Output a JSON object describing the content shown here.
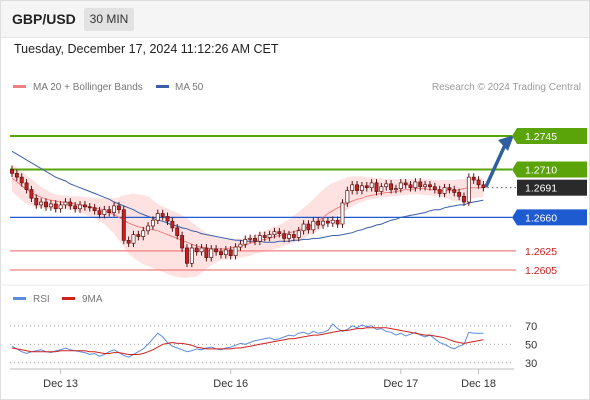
{
  "header": {
    "symbol": "GBP/USD",
    "timeframe": "30 MIN"
  },
  "datetime": "Tuesday, December 17, 2024 11:12:26 AM CET",
  "colors": {
    "support": "#1f5bd0",
    "resistance": "#5aa40a",
    "pivot": "#f08080",
    "ma20": "#f08080",
    "bollinger": "#fdd8d8",
    "ma50": "#3a5fa8",
    "last_price": "#2a2a2a",
    "arrow": "#2e5f9e",
    "rsi": "#5b8de0",
    "rsi_ma": "#d02020",
    "candle_up": "#ffffff",
    "candle_down": "#c82020"
  },
  "chart_data": [
    {
      "type": "candlestick",
      "legend": [
        {
          "name": "MA 20 + Bollinger Bands",
          "color": "#f08080"
        },
        {
          "name": "MA 50",
          "color": "#3a5fa8"
        }
      ],
      "credit": "Research © 2024 Trading Central",
      "x_ticks": [
        "Dec 13",
        "Dec 16",
        "Dec 17",
        "Dec 18"
      ],
      "levels": [
        {
          "label": "1.2745",
          "value": 1.2745,
          "kind": "resistance"
        },
        {
          "label": "1.2710",
          "value": 1.271,
          "kind": "resistance"
        },
        {
          "label": "1.2691",
          "value": 1.2691,
          "kind": "last"
        },
        {
          "label": "1.2660",
          "value": 1.266,
          "kind": "support"
        },
        {
          "label": "1.2625",
          "value": 1.2625,
          "kind": "pivot"
        },
        {
          "label": "1.2605",
          "value": 1.2605,
          "kind": "pivot"
        }
      ],
      "arrow": {
        "from": 1.2691,
        "to": 1.2745
      },
      "close": [
        1.2706,
        1.2702,
        1.2696,
        1.2689,
        1.268,
        1.2673,
        1.2676,
        1.2671,
        1.2674,
        1.2669,
        1.2673,
        1.2676,
        1.2672,
        1.2669,
        1.2673,
        1.2671,
        1.267,
        1.2667,
        1.2663,
        1.2668,
        1.2665,
        1.2672,
        1.2668,
        1.2636,
        1.2633,
        1.2642,
        1.264,
        1.2646,
        1.2651,
        1.2657,
        1.2664,
        1.2661,
        1.2656,
        1.2649,
        1.2641,
        1.2628,
        1.2612,
        1.2628,
        1.2624,
        1.2628,
        1.2618,
        1.2627,
        1.2624,
        1.2621,
        1.2626,
        1.262,
        1.2629,
        1.2632,
        1.2637,
        1.2638,
        1.2635,
        1.2641,
        1.2639,
        1.2642,
        1.2645,
        1.2643,
        1.2638,
        1.2642,
        1.2639,
        1.2646,
        1.2653,
        1.2647,
        1.2656,
        1.2652,
        1.2656,
        1.2654,
        1.2657,
        1.2653,
        1.2675,
        1.2688,
        1.2694,
        1.2688,
        1.2693,
        1.2691,
        1.2696,
        1.2687,
        1.2692,
        1.2695,
        1.2689,
        1.269,
        1.2696,
        1.2694,
        1.2691,
        1.2697,
        1.2692,
        1.2694,
        1.2692,
        1.2689,
        1.2685,
        1.2691,
        1.2689,
        1.2686,
        1.2682,
        1.2676,
        1.2702,
        1.2699,
        1.2694,
        1.2691
      ],
      "ma20": [
        1.2701,
        1.2697,
        1.2693,
        1.2689,
        1.2686,
        1.2683,
        1.2681,
        1.2679,
        1.2678,
        1.2677,
        1.2676,
        1.2676,
        1.2675,
        1.2674,
        1.2673,
        1.2672,
        1.2671,
        1.267,
        1.2669,
        1.2667,
        1.2665,
        1.2663,
        1.266,
        1.2657,
        1.2654,
        1.2652,
        1.265,
        1.2649,
        1.2648,
        1.2647,
        1.2646,
        1.2644,
        1.2642,
        1.264,
        1.2638,
        1.2636,
        1.2634,
        1.2632,
        1.263,
        1.2629,
        1.2628,
        1.2627,
        1.2627,
        1.2627,
        1.2627,
        1.2628,
        1.2629,
        1.263,
        1.2631,
        1.2633,
        1.2634,
        1.2636,
        1.2637,
        1.2638,
        1.264,
        1.2641,
        1.2642,
        1.2644,
        1.2645,
        1.2647,
        1.2648,
        1.265,
        1.2652,
        1.2656,
        1.266,
        1.2664,
        1.2667,
        1.267,
        1.2672,
        1.2675,
        1.2677,
        1.2679,
        1.268,
        1.2682,
        1.2683,
        1.2684,
        1.2685,
        1.2686,
        1.2686,
        1.2687,
        1.2688,
        1.2689,
        1.2689,
        1.269,
        1.269,
        1.269,
        1.2689,
        1.2689,
        1.2688,
        1.2688,
        1.2688,
        1.2688,
        1.2689,
        1.269,
        1.2691,
        1.2691,
        1.2691,
        1.2691
      ],
      "bb_upper": [
        1.2715,
        1.2712,
        1.2708,
        1.2704,
        1.27,
        1.2696,
        1.2692,
        1.2689,
        1.2686,
        1.2684,
        1.2683,
        1.2683,
        1.2682,
        1.2682,
        1.2682,
        1.2681,
        1.2681,
        1.268,
        1.268,
        1.268,
        1.268,
        1.268,
        1.2681,
        1.2683,
        1.2684,
        1.2685,
        1.2684,
        1.2683,
        1.2682,
        1.2678,
        1.2674,
        1.2671,
        1.2669,
        1.2667,
        1.2665,
        1.2662,
        1.2659,
        1.2655,
        1.2651,
        1.2647,
        1.2644,
        1.2641,
        1.2639,
        1.2638,
        1.2637,
        1.2637,
        1.2638,
        1.2638,
        1.2639,
        1.264,
        1.2642,
        1.2644,
        1.2646,
        1.2648,
        1.265,
        1.2652,
        1.2655,
        1.2658,
        1.2662,
        1.2666,
        1.267,
        1.2674,
        1.2679,
        1.2684,
        1.2689,
        1.2693,
        1.2696,
        1.2698,
        1.27,
        1.2702,
        1.2703,
        1.2703,
        1.2703,
        1.2702,
        1.2702,
        1.2701,
        1.2701,
        1.27,
        1.27,
        1.27,
        1.27,
        1.27,
        1.27,
        1.27,
        1.27,
        1.27,
        1.27,
        1.2699,
        1.2699,
        1.2699,
        1.2699,
        1.2699,
        1.27,
        1.27,
        1.2701,
        1.2701,
        1.2701,
        1.2701
      ],
      "bb_lower": [
        1.2687,
        1.2682,
        1.2678,
        1.2674,
        1.2672,
        1.267,
        1.267,
        1.2669,
        1.2669,
        1.2669,
        1.2669,
        1.2669,
        1.2668,
        1.2667,
        1.2665,
        1.2663,
        1.2661,
        1.2659,
        1.2656,
        1.2653,
        1.2648,
        1.2643,
        1.2636,
        1.2629,
        1.2622,
        1.2618,
        1.2614,
        1.2611,
        1.2609,
        1.2607,
        1.2605,
        1.2603,
        1.2601,
        1.2599,
        1.2598,
        1.2597,
        1.2597,
        1.2598,
        1.2598,
        1.2602,
        1.2606,
        1.261,
        1.2613,
        1.2615,
        1.2616,
        1.2617,
        1.2617,
        1.2618,
        1.2619,
        1.262,
        1.2622,
        1.2623,
        1.2624,
        1.2625,
        1.2627,
        1.2628,
        1.263,
        1.2632,
        1.2634,
        1.2636,
        1.2638,
        1.2641,
        1.2643,
        1.2646,
        1.265,
        1.2654,
        1.2658,
        1.2662,
        1.2665,
        1.2668,
        1.2671,
        1.2674,
        1.2676,
        1.2678,
        1.2679,
        1.268,
        1.2681,
        1.2681,
        1.2682,
        1.2682,
        1.2683,
        1.2683,
        1.2684,
        1.2684,
        1.2684,
        1.2683,
        1.2683,
        1.2682,
        1.2682,
        1.2681,
        1.2679,
        1.2677,
        1.2677,
        1.2678,
        1.2679,
        1.268,
        1.2681,
        1.2681
      ],
      "ma50": [
        1.2729,
        1.2726,
        1.2723,
        1.272,
        1.2717,
        1.2714,
        1.2711,
        1.2708,
        1.2705,
        1.2702,
        1.27,
        1.2698,
        1.2695,
        1.2693,
        1.2691,
        1.2689,
        1.2687,
        1.2685,
        1.2683,
        1.2681,
        1.2679,
        1.2676,
        1.2674,
        1.2672,
        1.267,
        1.2668,
        1.2665,
        1.2663,
        1.2661,
        1.2659,
        1.2657,
        1.2656,
        1.2654,
        1.2652,
        1.2651,
        1.2649,
        1.2648,
        1.2646,
        1.2645,
        1.2643,
        1.2642,
        1.2641,
        1.264,
        1.2639,
        1.2638,
        1.2637,
        1.2636,
        1.2636,
        1.2635,
        1.2635,
        1.2635,
        1.2635,
        1.2634,
        1.2634,
        1.2634,
        1.2635,
        1.2635,
        1.2635,
        1.2636,
        1.2636,
        1.2637,
        1.2637,
        1.2638,
        1.2638,
        1.2639,
        1.264,
        1.2641,
        1.2641,
        1.2642,
        1.2643,
        1.2644,
        1.2646,
        1.2647,
        1.2649,
        1.265,
        1.2652,
        1.2653,
        1.2655,
        1.2657,
        1.2658,
        1.266,
        1.2661,
        1.2662,
        1.2663,
        1.2664,
        1.2665,
        1.2667,
        1.2668,
        1.2668,
        1.267,
        1.2671,
        1.2672,
        1.2673,
        1.2673,
        1.2675,
        1.2676,
        1.2677,
        1.2678
      ]
    },
    {
      "type": "line",
      "legend": [
        {
          "name": "RSI",
          "color": "#5b8de0"
        },
        {
          "name": "9MA",
          "color": "#d02020"
        }
      ],
      "y_ticks": [
        "70",
        "50",
        "30"
      ],
      "ylim": [
        20,
        85
      ],
      "rsi": [
        48,
        45,
        42,
        40,
        42,
        43,
        44,
        42,
        41,
        43,
        44,
        46,
        44,
        43,
        42,
        41,
        39,
        40,
        37,
        39,
        42,
        44,
        41,
        38,
        36,
        39,
        42,
        45,
        50,
        56,
        62,
        58,
        52,
        48,
        46,
        44,
        42,
        43,
        45,
        44,
        46,
        47,
        45,
        44,
        46,
        47,
        49,
        51,
        50,
        52,
        54,
        55,
        56,
        57,
        55,
        56,
        58,
        60,
        59,
        62,
        63,
        61,
        64,
        62,
        63,
        65,
        72,
        67,
        64,
        66,
        70,
        68,
        71,
        69,
        70,
        66,
        67,
        64,
        63,
        60,
        62,
        59,
        61,
        63,
        60,
        58,
        60,
        56,
        52,
        50,
        47,
        45,
        48,
        50,
        63,
        62,
        62,
        62
      ],
      "rsi_ma": [
        46,
        45,
        44,
        43,
        42,
        42,
        42,
        42,
        42,
        42,
        43,
        43,
        43,
        43,
        43,
        43,
        42,
        42,
        41,
        40,
        40,
        41,
        41,
        40,
        39,
        39,
        39,
        40,
        42,
        44,
        47,
        50,
        51,
        52,
        51,
        51,
        50,
        49,
        47,
        46,
        45,
        45,
        45,
        45,
        45,
        45,
        46,
        46,
        47,
        48,
        49,
        50,
        51,
        52,
        53,
        54,
        55,
        56,
        56,
        57,
        58,
        59,
        60,
        60,
        61,
        62,
        63,
        64,
        65,
        65,
        66,
        67,
        67,
        68,
        68,
        68,
        68,
        68,
        67,
        66,
        65,
        64,
        63,
        62,
        61,
        60,
        60,
        59,
        58,
        57,
        55,
        53,
        52,
        51,
        52,
        53,
        54,
        55
      ]
    }
  ]
}
